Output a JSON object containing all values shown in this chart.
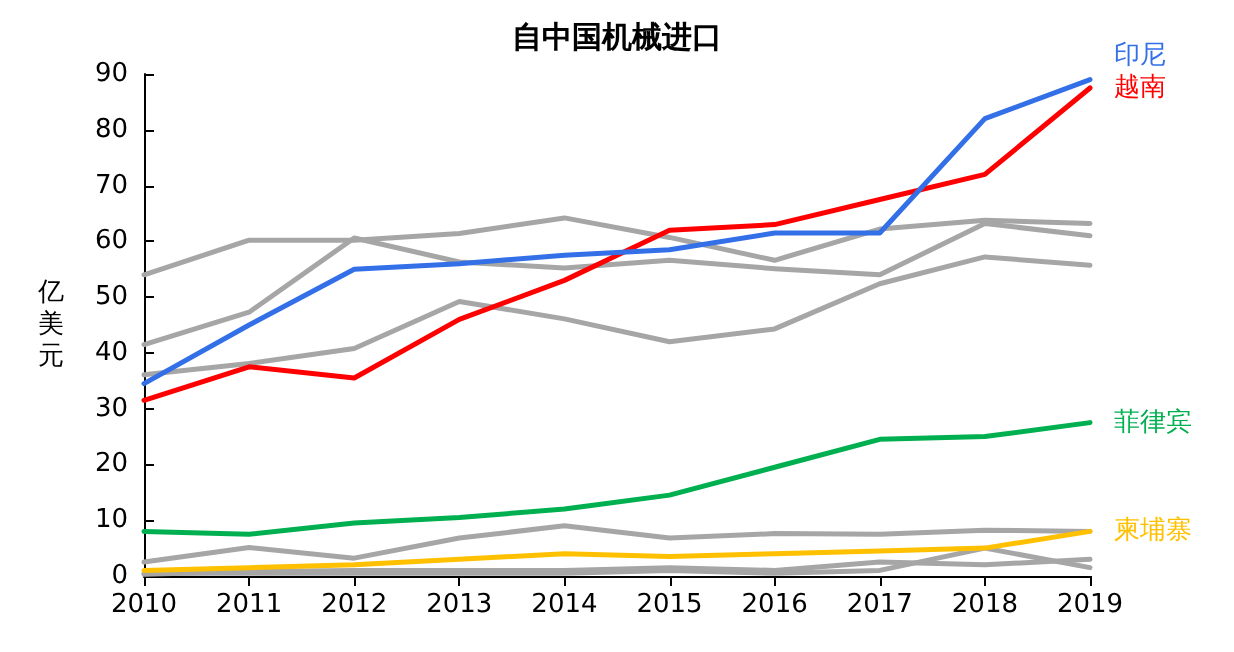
{
  "chart_data": {
    "type": "line",
    "title": "自中国机械进口",
    "ylabel": "亿美元",
    "categories": [
      "2010",
      "2011",
      "2012",
      "2013",
      "2014",
      "2015",
      "2016",
      "2017",
      "2018",
      "2019"
    ],
    "ylim": [
      0,
      90
    ],
    "yticks": [
      0,
      10,
      20,
      30,
      40,
      50,
      60,
      70,
      80,
      90
    ],
    "grid": false,
    "legend": false,
    "marker": "none",
    "line_style": "solid",
    "series": [
      {
        "color": "#a6a6a6",
        "values": [
          54,
          60.2,
          60.2,
          61.4,
          64.2,
          60.7,
          56.6,
          62.2,
          63.8,
          63.2
        ]
      },
      {
        "color": "#a6a6a6",
        "values": [
          41.5,
          47.3,
          60.6,
          56.3,
          55.2,
          56.6,
          55.1,
          54,
          63.2,
          61
        ]
      },
      {
        "color": "#a6a6a6",
        "values": [
          36.1,
          38.1,
          40.8,
          49.2,
          46.1,
          42,
          44.3,
          52.4,
          57.2,
          55.7
        ]
      },
      {
        "color": "#a6a6a6",
        "values": [
          2.5,
          5.1,
          3.2,
          6.8,
          9,
          6.8,
          7.6,
          7.5,
          8.2,
          8
        ]
      },
      {
        "color": "#a6a6a6",
        "values": [
          0.5,
          0.5,
          0.5,
          0.5,
          0.5,
          1,
          0.5,
          1,
          5,
          1.5
        ]
      },
      {
        "color": "#a6a6a6",
        "values": [
          0.3,
          0.8,
          1,
          1,
          1,
          1.5,
          1,
          2.5,
          2,
          3
        ]
      },
      {
        "name": "柬埔寨",
        "color": "#ffc000",
        "values": [
          1,
          1.5,
          2,
          3,
          4,
          3.5,
          4,
          4.5,
          5,
          8
        ]
      },
      {
        "name": "菲律宾",
        "color": "#00b050",
        "values": [
          8,
          7.5,
          9.5,
          10.5,
          12,
          14.5,
          19.5,
          24.5,
          25,
          27.5
        ]
      },
      {
        "name": "越南",
        "color": "#ff0000",
        "values": [
          31.5,
          37.5,
          35.5,
          46,
          53,
          62,
          63,
          67.5,
          72,
          87.5
        ]
      },
      {
        "name": "印尼",
        "color": "#3370e8",
        "values": [
          34.5,
          45,
          55,
          56,
          57.5,
          58.5,
          61.5,
          61.5,
          82,
          89
        ]
      }
    ]
  }
}
